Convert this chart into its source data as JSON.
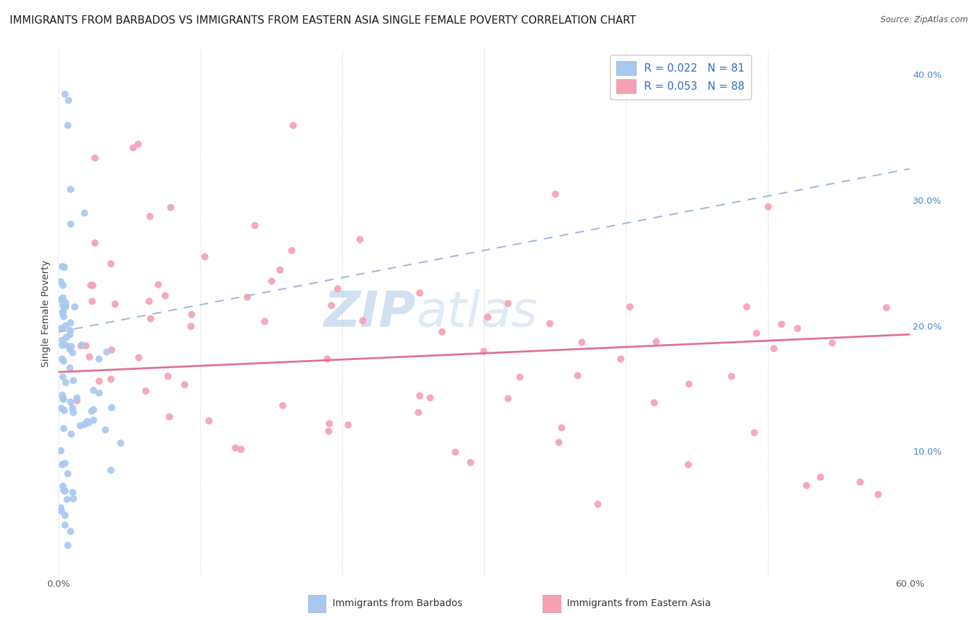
{
  "title": "IMMIGRANTS FROM BARBADOS VS IMMIGRANTS FROM EASTERN ASIA SINGLE FEMALE POVERTY CORRELATION CHART",
  "source": "Source: ZipAtlas.com",
  "ylabel": "Single Female Poverty",
  "xlim": [
    0.0,
    0.6
  ],
  "ylim": [
    0.0,
    0.42
  ],
  "yticks_right": [
    0.1,
    0.2,
    0.3,
    0.4
  ],
  "ytick_right_labels": [
    "10.0%",
    "20.0%",
    "30.0%",
    "40.0%"
  ],
  "barbados_color": "#a8c8f0",
  "barbados_edge_color": "#7aaad0",
  "eastern_asia_color": "#f5a0b5",
  "eastern_asia_edge_color": "#e07090",
  "barbados_trend_color": "#a0b8e0",
  "eastern_asia_trend_color": "#e07090",
  "barbados_R": 0.022,
  "barbados_N": 81,
  "eastern_asia_R": 0.053,
  "eastern_asia_N": 88,
  "legend_label_barbados": "Immigrants from Barbados",
  "legend_label_eastern_asia": "Immigrants from Eastern Asia",
  "watermark_text": "ZIPatlas",
  "watermark_color": "#c8d8ee",
  "title_fontsize": 11,
  "axis_label_fontsize": 10,
  "tick_fontsize": 9.5,
  "legend_fontsize": 11,
  "barbados_trend_y0": 0.195,
  "barbados_trend_y1": 0.325,
  "eastern_asia_trend_y0": 0.163,
  "eastern_asia_trend_y1": 0.193
}
